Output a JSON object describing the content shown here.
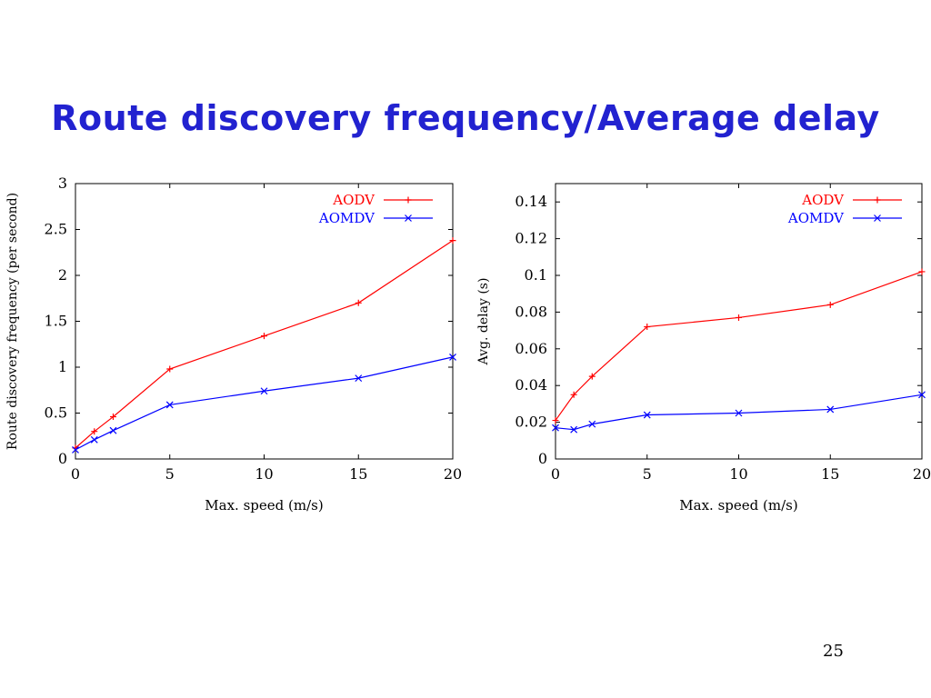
{
  "slide": {
    "title": "Route discovery frequency/Average delay",
    "page_number": "25"
  },
  "colors": {
    "title": "#2222d0",
    "aodv": "#ff0000",
    "aomdv": "#0000ff"
  },
  "chart_data": [
    {
      "type": "line",
      "xlabel": "Max. speed (m/s)",
      "ylabel": "Route discovery frequency (per second)",
      "xlim": [
        0,
        20
      ],
      "ylim": [
        0,
        3
      ],
      "xticks": [
        0,
        5,
        10,
        15,
        20
      ],
      "yticks": [
        0,
        0.5,
        1,
        1.5,
        2,
        2.5,
        3
      ],
      "ytick_labels": [
        "0",
        "0.5",
        "1",
        "1.5",
        "2",
        "2.5",
        "3"
      ],
      "legend_position": "top-right",
      "grid": false,
      "series": [
        {
          "name": "AODV",
          "color": "#ff0000",
          "marker": "plus",
          "x": [
            0,
            1,
            2,
            5,
            10,
            15,
            20
          ],
          "y": [
            0.12,
            0.3,
            0.46,
            0.98,
            1.34,
            1.7,
            2.38
          ]
        },
        {
          "name": "AOMDV",
          "color": "#0000ff",
          "marker": "cross",
          "x": [
            0,
            1,
            2,
            5,
            10,
            15,
            20
          ],
          "y": [
            0.1,
            0.21,
            0.31,
            0.59,
            0.74,
            0.88,
            1.11
          ]
        }
      ]
    },
    {
      "type": "line",
      "xlabel": "Max. speed (m/s)",
      "ylabel": "Avg. delay (s)",
      "xlim": [
        0,
        20
      ],
      "ylim": [
        0,
        0.15
      ],
      "xticks": [
        0,
        5,
        10,
        15,
        20
      ],
      "yticks": [
        0,
        0.02,
        0.04,
        0.06,
        0.08,
        0.1,
        0.12,
        0.14
      ],
      "ytick_labels": [
        "0",
        "0.02",
        "0.04",
        "0.06",
        "0.08",
        "0.1",
        "0.12",
        "0.14"
      ],
      "legend_position": "top-right",
      "grid": false,
      "series": [
        {
          "name": "AODV",
          "color": "#ff0000",
          "marker": "plus",
          "x": [
            0,
            1,
            2,
            5,
            10,
            15,
            20
          ],
          "y": [
            0.021,
            0.035,
            0.045,
            0.072,
            0.077,
            0.084,
            0.102
          ]
        },
        {
          "name": "AOMDV",
          "color": "#0000ff",
          "marker": "cross",
          "x": [
            0,
            1,
            2,
            5,
            10,
            15,
            20
          ],
          "y": [
            0.017,
            0.016,
            0.019,
            0.024,
            0.025,
            0.027,
            0.035
          ]
        }
      ]
    }
  ]
}
